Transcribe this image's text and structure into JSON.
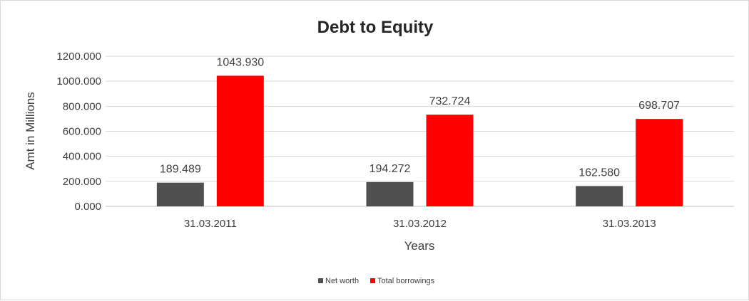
{
  "chart_data": {
    "type": "bar",
    "title": "Debt to Equity",
    "xlabel": "Years",
    "ylabel": "Amt in Millions",
    "categories": [
      "31.03.2011",
      "31.03.2012",
      "31.03.2013"
    ],
    "series": [
      {
        "name": "Net worth",
        "values": [
          189.489,
          194.272,
          162.58
        ],
        "labels": [
          "189.489",
          "194.272",
          "162.580"
        ],
        "color": "#505050"
      },
      {
        "name": "Total borrowings",
        "values": [
          1043.93,
          732.724,
          698.707
        ],
        "labels": [
          "1043.930",
          "732.724",
          "698.707"
        ],
        "color": "#ff0000"
      }
    ],
    "ylim": [
      0,
      1200
    ],
    "yticks": [
      "0.000",
      "200.000",
      "400.000",
      "600.000",
      "800.000",
      "1000.000",
      "1200.000"
    ],
    "grid": true,
    "legend_position": "bottom"
  }
}
